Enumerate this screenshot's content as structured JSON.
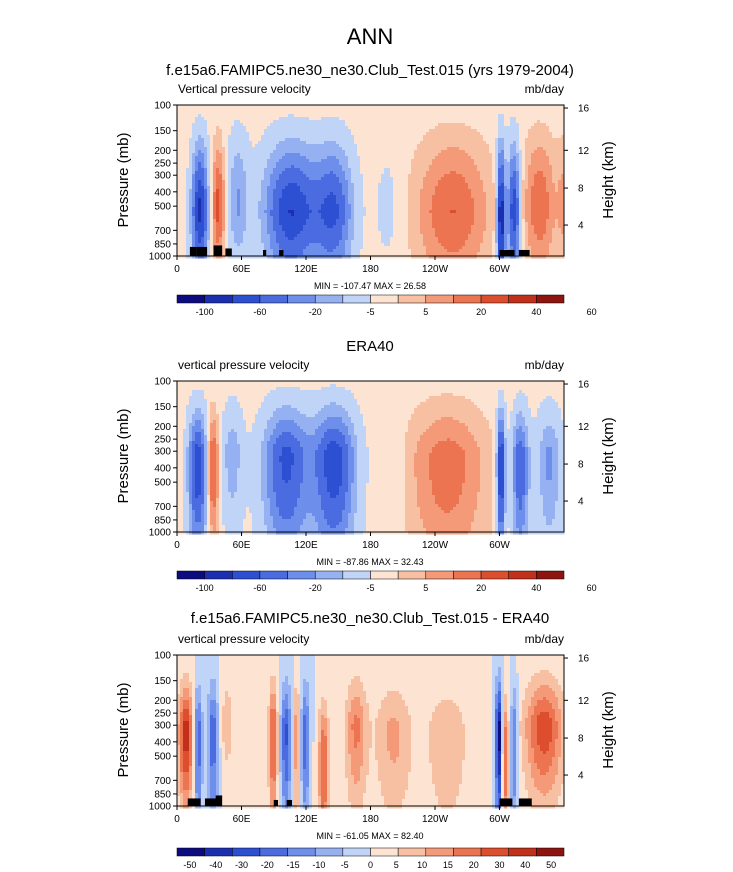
{
  "figure": {
    "title": "ANN"
  },
  "chart_data": [
    {
      "type": "heatmap",
      "title": "f.e15a6.FAMIPC5.ne30_ne30.Club_Test.015 (yrs 1979-2004)",
      "left_label": "Vertical pressure velocity",
      "right_label": "mb/day",
      "ylabel": "Pressure (mb)",
      "ylabel_right": "Height (km)",
      "x_ticks": [
        "0",
        "60E",
        "120E",
        "180",
        "120W",
        "60W"
      ],
      "y_ticks": [
        "100",
        "150",
        "200",
        "250",
        "300",
        "400",
        "500",
        "700",
        "850",
        "1000"
      ],
      "y_ticks_right": [
        "16",
        "12",
        "8",
        "4"
      ],
      "stats": "MIN = -107.47  MAX =  26.58",
      "colorbar_labels": [
        "-100",
        "-60",
        "-20",
        "-5",
        "5",
        "20",
        "40",
        "60"
      ],
      "ylim": [
        1000,
        100
      ],
      "xlim": [
        0,
        360
      ]
    },
    {
      "type": "heatmap",
      "title": "ERA40",
      "left_label": "vertical pressure velocity",
      "right_label": "mb/day",
      "ylabel": "Pressure (mb)",
      "ylabel_right": "Height (km)",
      "x_ticks": [
        "0",
        "60E",
        "120E",
        "180",
        "120W",
        "60W"
      ],
      "y_ticks": [
        "100",
        "150",
        "200",
        "250",
        "300",
        "400",
        "500",
        "700",
        "850",
        "1000"
      ],
      "y_ticks_right": [
        "16",
        "12",
        "8",
        "4"
      ],
      "stats": "MIN = -87.86  MAX =  32.43",
      "colorbar_labels": [
        "-100",
        "-60",
        "-20",
        "-5",
        "5",
        "20",
        "40",
        "60"
      ],
      "ylim": [
        1000,
        100
      ],
      "xlim": [
        0,
        360
      ]
    },
    {
      "type": "heatmap",
      "title": "f.e15a6.FAMIPC5.ne30_ne30.Club_Test.015 - ERA40",
      "left_label": "vertical pressure velocity",
      "right_label": "mb/day",
      "ylabel": "Pressure (mb)",
      "ylabel_right": "Height (km)",
      "x_ticks": [
        "0",
        "60E",
        "120E",
        "180",
        "120W",
        "60W"
      ],
      "y_ticks": [
        "100",
        "150",
        "200",
        "250",
        "300",
        "400",
        "500",
        "700",
        "850",
        "1000"
      ],
      "y_ticks_right": [
        "16",
        "12",
        "8",
        "4"
      ],
      "stats": "MIN = -61.05  MAX = 82.40",
      "colorbar_labels": [
        "-50",
        "-40",
        "-30",
        "-20",
        "-15",
        "-10",
        "-5",
        "0",
        "5",
        "10",
        "15",
        "20",
        "30",
        "40",
        "50"
      ],
      "ylim": [
        1000,
        100
      ],
      "xlim": [
        0,
        360
      ]
    }
  ],
  "colors": {
    "scale": [
      "#0c0c80",
      "#1c2fb0",
      "#2d4fd2",
      "#4a6ce0",
      "#6d8eea",
      "#96b1f2",
      "#c0d4f8",
      "#fde3d2",
      "#f8c0a2",
      "#f49a78",
      "#ec7450",
      "#dd4e2e",
      "#c0301a",
      "#8e1410"
    ]
  }
}
